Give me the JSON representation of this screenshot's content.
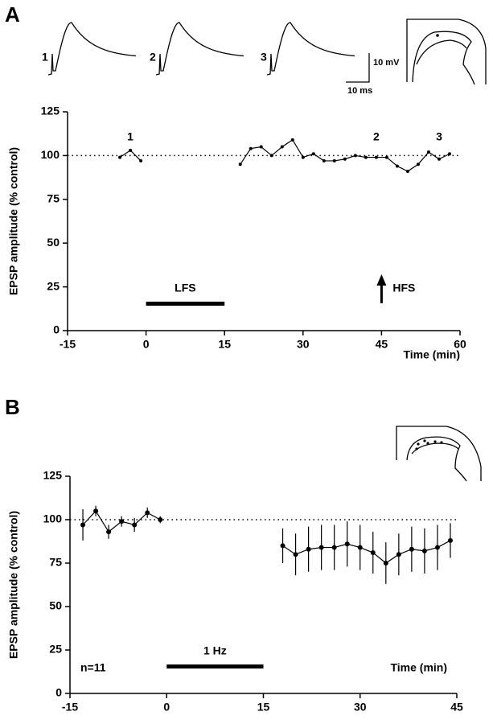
{
  "chart_data": [
    {
      "type": "line",
      "panel": "A",
      "y_label": "EPSP amplitude (% control)",
      "x_label": "Time (min)",
      "xlim": [
        -15,
        60
      ],
      "xticks": [
        -15,
        0,
        15,
        30,
        45,
        60
      ],
      "ylim": [
        0,
        125
      ],
      "yticks": [
        0,
        25,
        50,
        75,
        100,
        125
      ],
      "reference_line": 100,
      "x": [
        -5,
        -3,
        -1,
        null,
        18,
        20,
        22,
        24,
        26,
        28,
        30,
        32,
        34,
        36,
        38,
        40,
        42,
        44,
        46,
        48,
        50,
        52,
        54,
        56,
        58
      ],
      "values": [
        99,
        103,
        97,
        null,
        95,
        104,
        105,
        100,
        105,
        109,
        99,
        101,
        97,
        97,
        98,
        100,
        99,
        99,
        99,
        94,
        91,
        95,
        102,
        98,
        101
      ],
      "annotations": [
        {
          "text": "1",
          "x": -3
        },
        {
          "text": "2",
          "x": 44
        },
        {
          "text": "3",
          "x": 56
        }
      ],
      "bars": [
        {
          "label": "LFS",
          "start": 0,
          "end": 15
        }
      ],
      "arrow": {
        "label": "HFS",
        "x": 45
      },
      "inset": {
        "trace_labels": [
          "1",
          "2",
          "3"
        ],
        "scale_y": "10 mV",
        "scale_x": "10 ms"
      }
    },
    {
      "type": "line",
      "panel": "B",
      "y_label": "EPSP amplitude (% control)",
      "x_label": "Time  (min)",
      "note": "n=11",
      "xlim": [
        -15,
        45
      ],
      "xticks": [
        -15,
        0,
        15,
        30,
        45
      ],
      "ylim": [
        0,
        125
      ],
      "yticks": [
        0,
        25,
        50,
        75,
        100,
        125
      ],
      "reference_line": 100,
      "x": [
        -13,
        -11,
        -9,
        -7,
        -5,
        -3,
        -1,
        null,
        18,
        20,
        22,
        24,
        26,
        28,
        30,
        32,
        34,
        36,
        38,
        40,
        42,
        44
      ],
      "values": [
        97,
        105,
        93,
        99,
        97,
        104,
        100,
        null,
        85,
        80,
        83,
        84,
        84,
        86,
        84,
        81,
        75,
        80,
        83,
        82,
        84,
        88
      ],
      "errors": [
        9,
        3,
        4,
        3,
        4,
        3,
        2,
        null,
        10,
        12,
        13,
        13,
        13,
        13,
        13,
        12,
        12,
        12,
        13,
        13,
        13,
        10
      ],
      "bars": [
        {
          "label": "1 Hz",
          "start": 0,
          "end": 15
        }
      ]
    }
  ]
}
